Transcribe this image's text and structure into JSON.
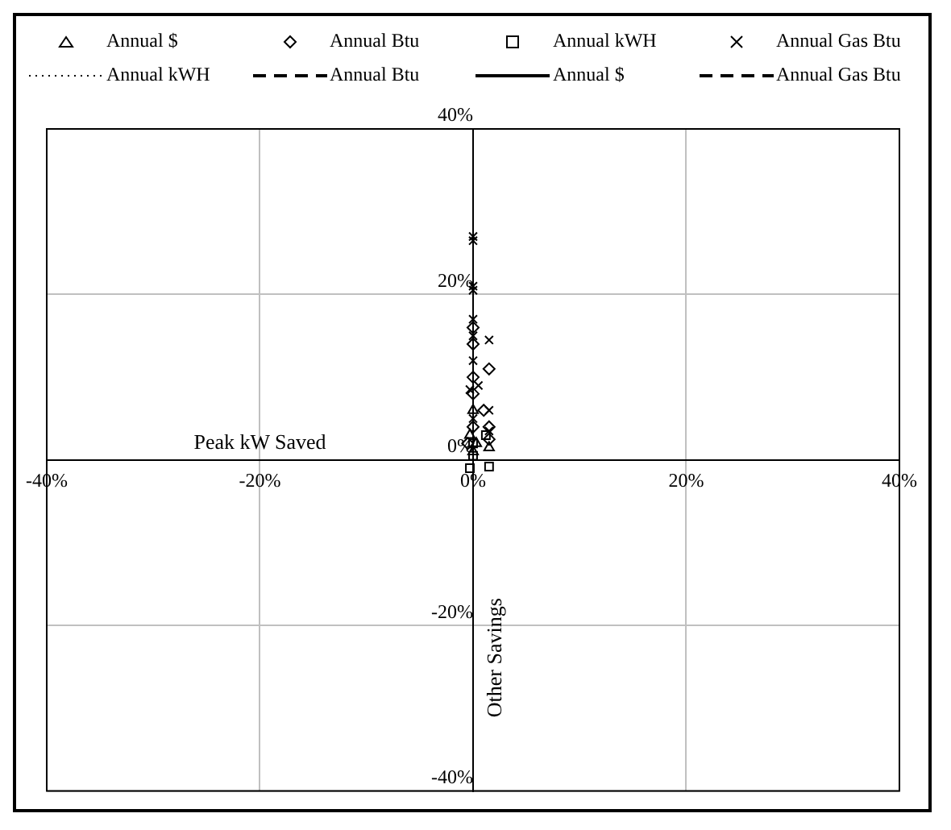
{
  "chart_data": {
    "type": "scatter",
    "xlabel": "Peak kW Saved",
    "ylabel": "Other Savings",
    "xlim": [
      -40,
      40
    ],
    "ylim": [
      -40,
      40
    ],
    "xticks": [
      {
        "value": -40,
        "label": "-40%"
      },
      {
        "value": -20,
        "label": "-20%"
      },
      {
        "value": 0,
        "label": "0%"
      },
      {
        "value": 20,
        "label": "20%"
      },
      {
        "value": 40,
        "label": "40%"
      }
    ],
    "yticks": [
      {
        "value": -40,
        "label": "-40%"
      },
      {
        "value": -20,
        "label": "-20%"
      },
      {
        "value": 0,
        "label": "0%"
      },
      {
        "value": 20,
        "label": "20%"
      },
      {
        "value": 40,
        "label": "40%"
      }
    ],
    "grid": true,
    "legend": "top",
    "series": [
      {
        "name": "Annual $",
        "color": "#000000",
        "marker": "triangle",
        "x": [
          -0.3,
          1.5,
          0,
          0,
          0.3
        ],
        "values": [
          3,
          1.5,
          1,
          6,
          2
        ]
      },
      {
        "name": "Annual Btu",
        "color": "#000000",
        "marker": "diamond",
        "x": [
          0,
          0,
          1.5,
          0,
          0,
          1,
          1.5,
          1.5,
          -0.5,
          0
        ],
        "values": [
          16,
          14,
          11,
          10,
          8,
          6,
          2.5,
          4,
          2,
          4
        ]
      },
      {
        "name": "Annual kWH",
        "color": "#000000",
        "marker": "square",
        "x": [
          -0.3,
          1.5,
          1.2,
          0,
          0
        ],
        "values": [
          -1,
          -0.8,
          3,
          0.5,
          2
        ]
      },
      {
        "name": "Annual Gas Btu",
        "color": "#000000",
        "marker": "cross",
        "x": [
          0,
          0,
          0,
          0,
          0,
          0,
          1.5,
          -0.3,
          0.5,
          1.5,
          1.5,
          0,
          0
        ],
        "values": [
          27,
          26.5,
          21,
          20.5,
          17,
          15,
          14.5,
          8.5,
          9,
          6,
          3.5,
          12,
          5
        ]
      },
      {
        "name": "Annual kWH",
        "type": "line",
        "color": "#000000",
        "line_style": "dotted",
        "marker": "none"
      },
      {
        "name": "Annual Btu",
        "type": "line",
        "color": "#000000",
        "line_style": "dashed",
        "marker": "none"
      },
      {
        "name": "Annual $",
        "type": "line",
        "color": "#000000",
        "line_style": "solid",
        "marker": "none"
      },
      {
        "name": "Annual Gas Btu",
        "type": "line",
        "color": "#000000",
        "line_style": "dashed",
        "marker": "none"
      }
    ]
  }
}
